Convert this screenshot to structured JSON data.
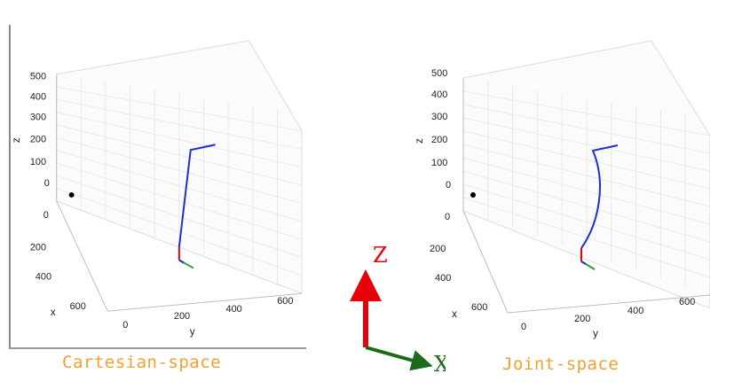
{
  "panels": [
    {
      "caption": "Cartesian-space",
      "z_label": "z",
      "x_label": "x",
      "y_label": "y",
      "z_ticks": [
        "500",
        "400",
        "300",
        "200",
        "100",
        "0"
      ],
      "x_ticks": [
        "0",
        "200",
        "400",
        "600"
      ],
      "y_ticks": [
        "0",
        "200",
        "400",
        "600"
      ],
      "path_shape": "straight",
      "path_color": "#1a2fd6"
    },
    {
      "caption": "Joint-space",
      "z_label": "z",
      "x_label": "x",
      "y_label": "y",
      "z_ticks": [
        "500",
        "400",
        "300",
        "200",
        "100",
        "0"
      ],
      "x_ticks": [
        "0",
        "200",
        "400",
        "600"
      ],
      "y_ticks": [
        "0",
        "200",
        "400",
        "600"
      ],
      "path_shape": "curved",
      "path_color": "#1a2fd6"
    }
  ],
  "legend": {
    "z_label": "Z",
    "x_label": "X",
    "z_color": "#e8000b",
    "x_color": "#1a6b1a"
  },
  "colors": {
    "caption": "#f0a030",
    "frame_x": "#2aa02a",
    "frame_z": "#e8000b"
  }
}
